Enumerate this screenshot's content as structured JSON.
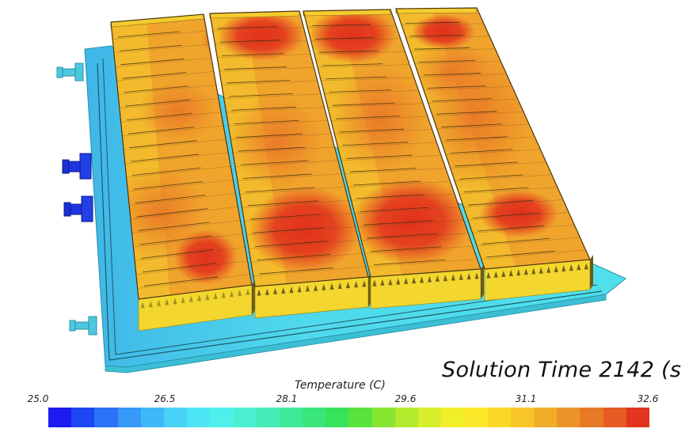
{
  "solution_time_text": "Solution Time 2142 (s",
  "legend": {
    "title": "Temperature (C)",
    "ticks": [
      "25.0",
      "26.5",
      "28.1",
      "29.6",
      "31.1",
      "32.6"
    ],
    "colors": [
      "#1c1cf0",
      "#1f46f5",
      "#2a73f7",
      "#3698f7",
      "#3fb8f7",
      "#47d3f5",
      "#4ee6f4",
      "#4ff0ea",
      "#4cefd2",
      "#47ebb7",
      "#40e89a",
      "#3ae57b",
      "#36e35b",
      "#5ae33b",
      "#87e632",
      "#b2ea2e",
      "#d7ee2c",
      "#f1ee2a",
      "#fbe82a",
      "#fbd828",
      "#f7c52a",
      "#f1ad2a",
      "#ec942a",
      "#e77a27",
      "#e45c23",
      "#e2341e"
    ]
  },
  "model": {
    "tray_color": "#4fd8ea",
    "inlet_pipe_color": "#1a2fd6",
    "pipe_color": "#4cc7de",
    "hot_color": "#e3341e",
    "warm_color": "#ec8f2c",
    "cool_color": "#f5d12e"
  }
}
